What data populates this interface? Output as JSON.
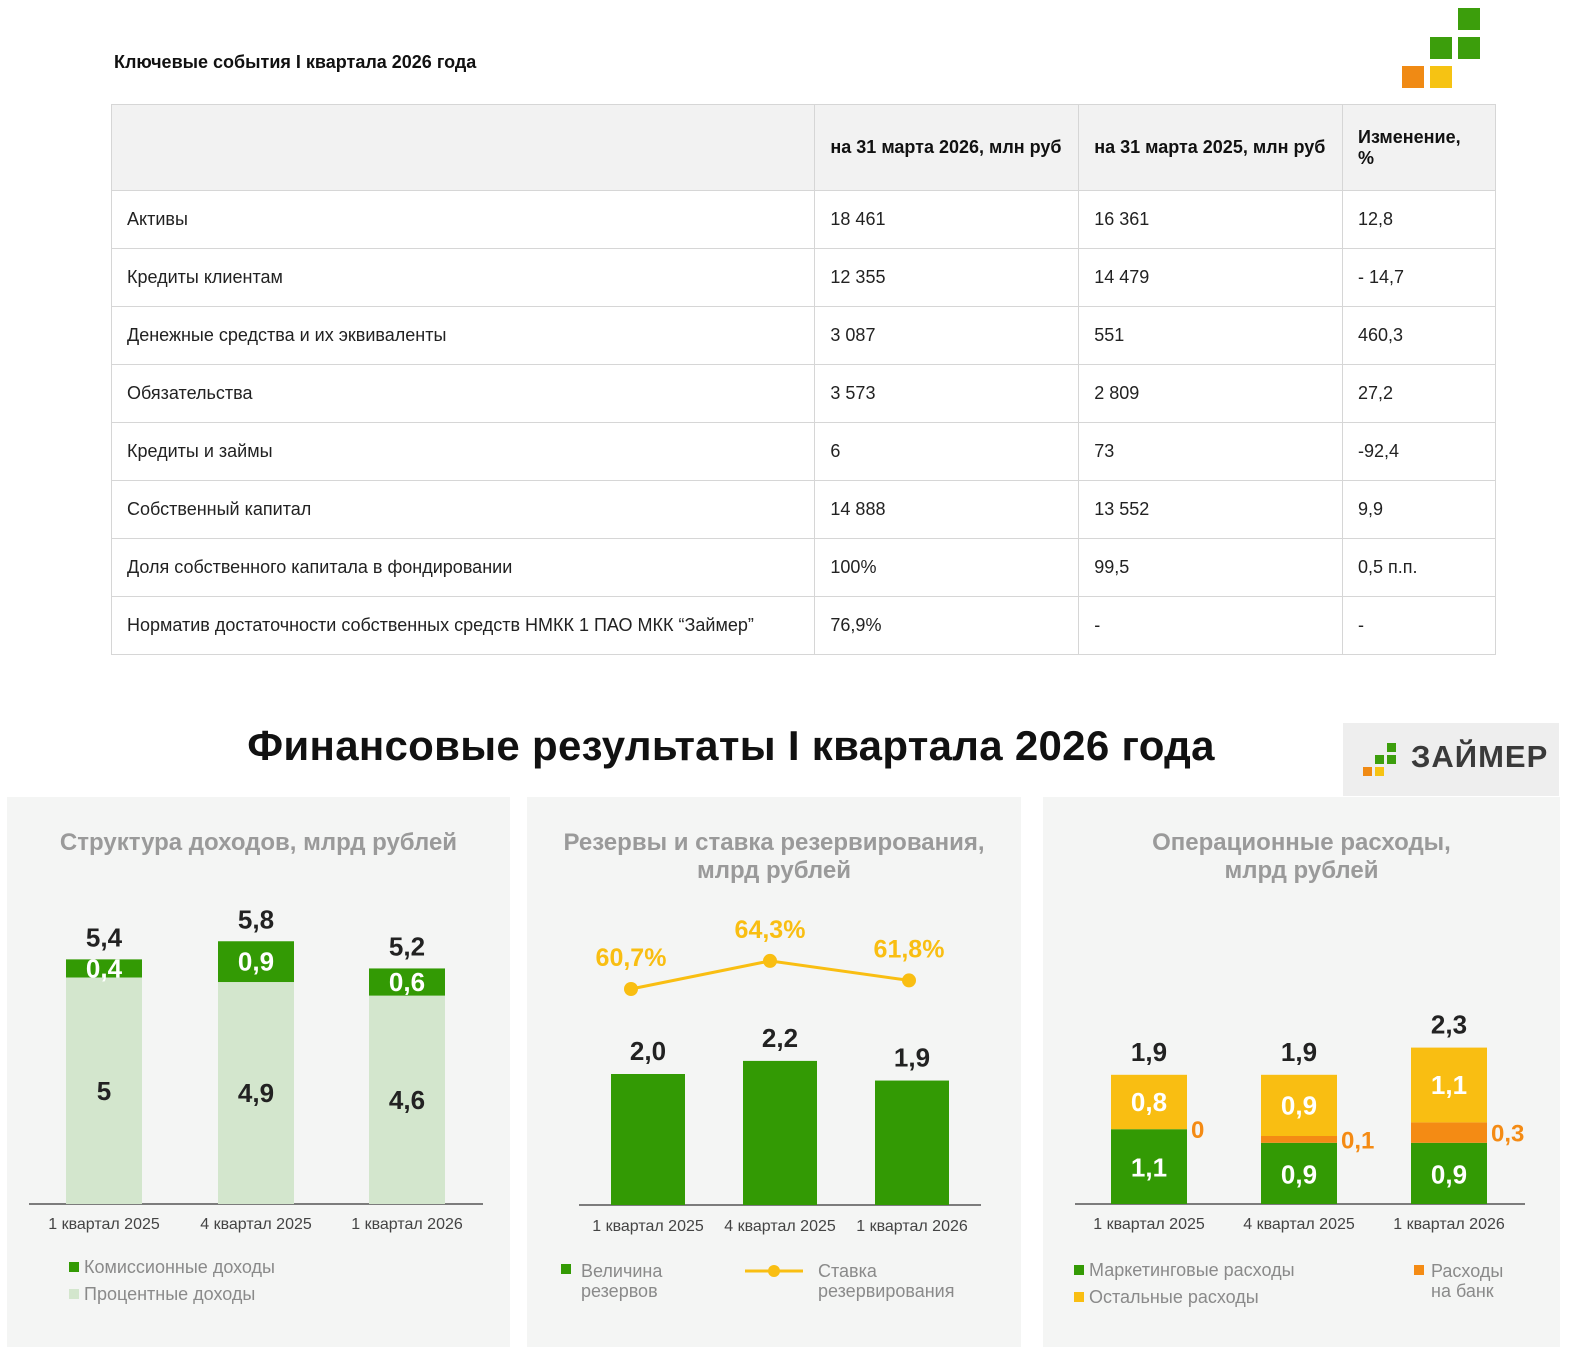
{
  "table": {
    "title": "Ключевые события I квартала 2026 года",
    "headers": [
      "",
      "на 31 марта 2026, млн руб",
      "на 31 марта 2025, млн руб",
      "Изменение, %"
    ],
    "rows": [
      [
        "Активы",
        "18 461",
        "16 361",
        "12,8"
      ],
      [
        "Кредиты клиентам",
        "12 355",
        "14 479",
        "- 14,7"
      ],
      [
        "Денежные средства и их эквиваленты",
        "3 087",
        "551",
        "460,3"
      ],
      [
        "Обязательства",
        "3 573",
        "2 809",
        "27,2"
      ],
      [
        "Кредиты и займы",
        "6",
        "73",
        "-92,4"
      ],
      [
        "Собственный капитал",
        "14 888",
        "13 552",
        "9,9"
      ],
      [
        "Доля собственного капитала в фондировании",
        "100%",
        "99,5",
        "0,5 п.п."
      ],
      [
        "Норматив достаточности собственных средств НМКК 1 ПАО МКК “Займер”",
        "76,9%",
        "-",
        "-"
      ]
    ]
  },
  "section_title": "Финансовые результаты I квартала 2026 года",
  "brand": {
    "name": "ЗАЙМЕР"
  },
  "colors": {
    "green": "#339a04",
    "light_green": "#d3e6cd",
    "yellow": "#f9be12",
    "orange": "#f48b14",
    "logo_green": "#3c9e0c",
    "logo_yellow": "#f6c313",
    "logo_orange": "#f08a14"
  },
  "chart_data": [
    {
      "type": "bar",
      "stacked": true,
      "title": "Структура доходов, млрд рублей",
      "categories": [
        "1 квартал 2025",
        "4 квартал 2025",
        "1 квартал 2026"
      ],
      "totals": [
        "5,4",
        "5,8",
        "5,2"
      ],
      "total_values": [
        5.4,
        5.8,
        5.2
      ],
      "series": [
        {
          "name": "Процентные доходы",
          "values": [
            5,
            4.9,
            4.6
          ],
          "labels": [
            "5",
            "4,9",
            "4,6"
          ],
          "color": "#d3e6cd"
        },
        {
          "name": "Комиссионные доходы",
          "values": [
            0.4,
            0.9,
            0.6
          ],
          "labels": [
            "0,4",
            "0,9",
            "0,6"
          ],
          "color": "#339a04"
        }
      ],
      "legend": [
        "Комиссионные доходы",
        "Процентные доходы"
      ]
    },
    {
      "type": "bar+line",
      "title": "Резервы и ставка резервирования, млрд рублей",
      "categories": [
        "1 квартал 2025",
        "4 квартал 2025",
        "1 квартал 2026"
      ],
      "series": [
        {
          "name": "Величина резервов",
          "type": "bar",
          "values": [
            2.0,
            2.2,
            1.9
          ],
          "labels": [
            "2,0",
            "2,2",
            "1,9"
          ],
          "color": "#339a04"
        },
        {
          "name": "Ставка резервирования",
          "type": "line",
          "values": [
            60.7,
            64.3,
            61.8
          ],
          "labels": [
            "60,7%",
            "64,3%",
            "61,8%"
          ],
          "color": "#f9be12"
        }
      ],
      "legend": [
        "Величина резервов",
        "Ставка резервирования"
      ]
    },
    {
      "type": "bar",
      "stacked": true,
      "title": "Операционные расходы, млрд рублей",
      "categories": [
        "1 квартал 2025",
        "4 квартал 2025",
        "1 квартал 2026"
      ],
      "totals": [
        "1,9",
        "1,9",
        "2,3"
      ],
      "total_values": [
        1.9,
        1.9,
        2.3
      ],
      "series": [
        {
          "name": "Маркетинговые расходы",
          "values": [
            1.1,
            0.9,
            0.9
          ],
          "labels": [
            "1,1",
            "0,9",
            "0,9"
          ],
          "color": "#339a04"
        },
        {
          "name": "Расходы на банк",
          "values": [
            0,
            0.1,
            0.3
          ],
          "labels": [
            "0",
            "0,1",
            "0,3"
          ],
          "color": "#f48b14"
        },
        {
          "name": "Остальные расходы",
          "values": [
            0.8,
            0.9,
            1.1
          ],
          "labels": [
            "0,8",
            "0,9",
            "1,1"
          ],
          "color": "#f9be12"
        }
      ],
      "legend": [
        "Маркетинговые расходы",
        "Остальные расходы",
        "Расходы на банк"
      ]
    }
  ]
}
